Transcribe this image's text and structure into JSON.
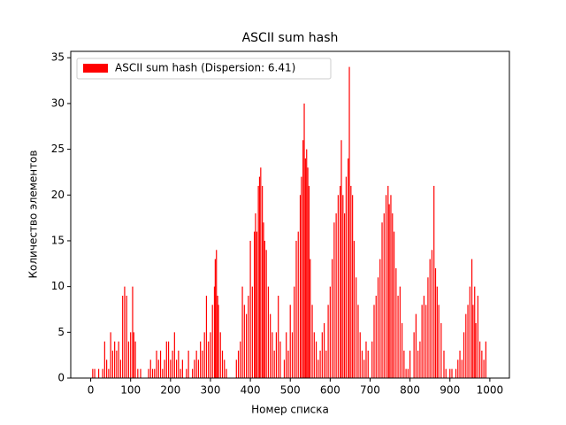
{
  "chart_data": {
    "type": "bar",
    "title": "ASCII sum hash",
    "x_label": "Номер списка",
    "y_label": "Количество элементов",
    "x": [
      5,
      10,
      20,
      30,
      35,
      40,
      45,
      50,
      55,
      60,
      65,
      70,
      75,
      80,
      85,
      90,
      95,
      100,
      105,
      108,
      112,
      118,
      125,
      145,
      150,
      155,
      160,
      165,
      170,
      175,
      180,
      185,
      190,
      195,
      200,
      205,
      210,
      215,
      220,
      225,
      230,
      240,
      245,
      255,
      260,
      265,
      270,
      275,
      280,
      285,
      290,
      295,
      300,
      305,
      310,
      312,
      315,
      318,
      320,
      325,
      330,
      335,
      340,
      365,
      370,
      375,
      380,
      385,
      390,
      395,
      400,
      405,
      410,
      413,
      416,
      420,
      423,
      426,
      430,
      433,
      436,
      440,
      445,
      450,
      455,
      460,
      465,
      470,
      475,
      485,
      490,
      495,
      500,
      505,
      510,
      515,
      520,
      525,
      528,
      532,
      535,
      538,
      541,
      544,
      547,
      550,
      555,
      560,
      565,
      570,
      575,
      580,
      585,
      590,
      595,
      600,
      605,
      610,
      615,
      620,
      625,
      628,
      632,
      636,
      640,
      645,
      648,
      652,
      656,
      660,
      665,
      670,
      675,
      680,
      685,
      690,
      695,
      705,
      710,
      715,
      720,
      725,
      730,
      735,
      740,
      745,
      748,
      752,
      756,
      760,
      765,
      770,
      775,
      780,
      785,
      790,
      795,
      800,
      810,
      815,
      820,
      825,
      830,
      835,
      840,
      845,
      850,
      855,
      860,
      864,
      868,
      872,
      878,
      885,
      890,
      900,
      905,
      915,
      920,
      925,
      930,
      935,
      940,
      945,
      950,
      955,
      958,
      962,
      965,
      970,
      975,
      980,
      985,
      990
    ],
    "series": [
      {
        "name": "ASCII sum hash (Dispersion: 6.41)",
        "color": "#ff0000",
        "values": [
          1,
          1,
          1,
          1,
          4,
          2,
          1,
          5,
          3,
          4,
          3,
          4,
          2,
          9,
          10,
          9,
          4,
          5,
          10,
          5,
          4,
          1,
          1,
          1,
          2,
          1,
          1,
          3,
          2,
          3,
          1,
          2,
          4,
          4,
          2,
          3,
          5,
          2,
          3,
          1,
          2,
          1,
          3,
          1,
          2,
          3,
          2,
          4,
          3,
          5,
          9,
          4,
          5,
          8,
          10,
          13,
          14,
          9,
          8,
          5,
          3,
          2,
          1,
          2,
          3,
          4,
          10,
          8,
          7,
          9,
          15,
          10,
          16,
          18,
          16,
          21,
          22,
          23,
          21,
          17,
          15,
          14,
          10,
          7,
          5,
          3,
          5,
          9,
          4,
          2,
          5,
          3,
          8,
          5,
          10,
          15,
          16,
          20,
          22,
          26,
          30,
          24,
          25,
          23,
          21,
          13,
          8,
          5,
          4,
          2,
          3,
          5,
          6,
          3,
          8,
          10,
          13,
          17,
          18,
          20,
          21,
          26,
          20,
          18,
          22,
          24,
          34,
          21,
          20,
          15,
          11,
          8,
          5,
          3,
          2,
          4,
          3,
          4,
          8,
          9,
          11,
          13,
          17,
          18,
          20,
          21,
          19,
          20,
          18,
          16,
          12,
          9,
          10,
          6,
          3,
          1,
          1,
          3,
          5,
          7,
          3,
          4,
          8,
          9,
          8,
          11,
          13,
          14,
          21,
          12,
          10,
          8,
          6,
          3,
          1,
          1,
          1,
          1,
          2,
          3,
          2,
          5,
          7,
          8,
          10,
          13,
          8,
          10,
          6,
          9,
          4,
          3,
          2,
          4
        ]
      }
    ],
    "xlim": [
      -50,
      1049
    ],
    "ylim": [
      0,
      35.7
    ],
    "xticks": [
      0,
      100,
      200,
      300,
      400,
      500,
      600,
      700,
      800,
      900,
      1000
    ],
    "yticks": [
      0,
      5,
      10,
      15,
      20,
      25,
      30,
      35
    ],
    "legend": "upper left"
  }
}
